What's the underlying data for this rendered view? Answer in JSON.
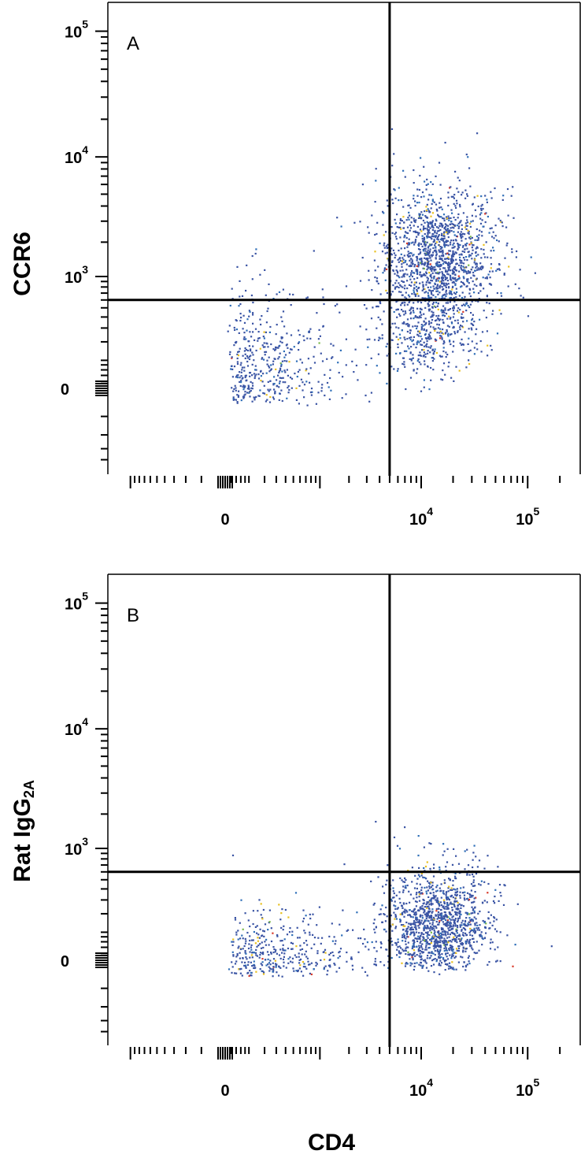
{
  "colors": {
    "frame": "#000000",
    "quadrant": "#000000",
    "density": [
      "#3a54a4",
      "#2f6fb8",
      "#e8c020",
      "#d83a2a",
      "#7ab84a"
    ]
  },
  "chart_data": [
    {
      "type": "scatter",
      "panel_label": "A",
      "ylabel": "CCR6",
      "xlabel": "",
      "x_scale": "biexponential",
      "y_scale": "biexponential",
      "x_ticks": [
        {
          "value": 0,
          "base": "0",
          "sup": ""
        },
        {
          "value": 10000,
          "base": "10",
          "sup": "4"
        },
        {
          "value": 100000,
          "base": "10",
          "sup": "5"
        }
      ],
      "y_ticks": [
        {
          "value": 100000,
          "base": "10",
          "sup": "5"
        },
        {
          "value": 10000,
          "base": "10",
          "sup": "4"
        },
        {
          "value": 1000,
          "base": "10",
          "sup": "3"
        },
        {
          "value": 0,
          "base": "0",
          "sup": ""
        }
      ],
      "quadrant_gate": {
        "x": 5000,
        "y": 600
      },
      "populations": [
        {
          "name": "cd4_pos_ccr6_pos",
          "x_center": 14000,
          "y_center": 1500,
          "spread_x_decades": 0.28,
          "spread_y_decades": 0.3,
          "events": 1500
        },
        {
          "name": "cd4_pos_ccr6_low",
          "x_center": 11000,
          "y_center": 300,
          "spread_x_decades": 0.25,
          "spread_y_decades": 0.25,
          "events": 350
        },
        {
          "name": "cd4_neg",
          "x_center": 200,
          "y_center": 150,
          "spread_x_decades": 0.5,
          "spread_y_decades": 0.4,
          "events": 450
        }
      ]
    },
    {
      "type": "scatter",
      "panel_label": "B",
      "ylabel": "Rat IgG",
      "ylabel_subscript": "2A",
      "xlabel": "CD4",
      "x_scale": "biexponential",
      "y_scale": "biexponential",
      "x_ticks": [
        {
          "value": 0,
          "base": "0",
          "sup": ""
        },
        {
          "value": 10000,
          "base": "10",
          "sup": "4"
        },
        {
          "value": 100000,
          "base": "10",
          "sup": "5"
        }
      ],
      "y_ticks": [
        {
          "value": 100000,
          "base": "10",
          "sup": "5"
        },
        {
          "value": 10000,
          "base": "10",
          "sup": "4"
        },
        {
          "value": 1000,
          "base": "10",
          "sup": "3"
        },
        {
          "value": 0,
          "base": "0",
          "sup": ""
        }
      ],
      "quadrant_gate": {
        "x": 5000,
        "y": 600
      },
      "populations": [
        {
          "name": "cd4_pos_isotype",
          "x_center": 14000,
          "y_center": 200,
          "spread_x_decades": 0.25,
          "spread_y_decades": 0.3,
          "events": 1300
        },
        {
          "name": "cd4_neg_isotype",
          "x_center": 300,
          "y_center": 80,
          "spread_x_decades": 0.55,
          "spread_y_decades": 0.3,
          "events": 400
        }
      ]
    }
  ]
}
